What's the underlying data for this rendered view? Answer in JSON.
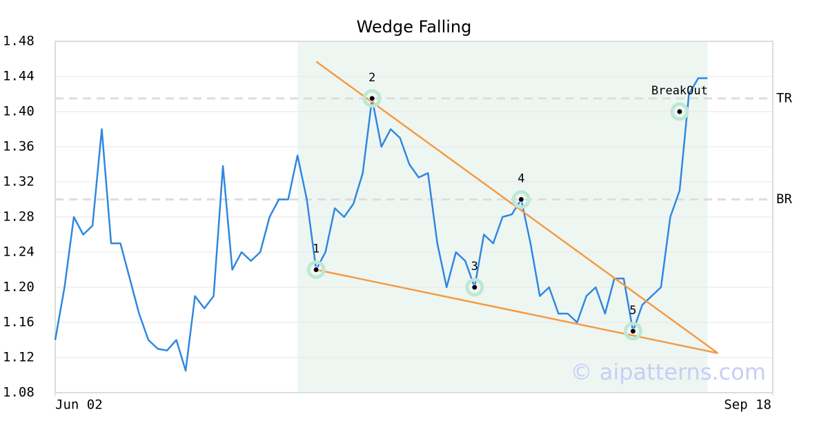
{
  "chart_data": {
    "type": "line",
    "title": "Wedge Falling",
    "x": [
      0,
      1,
      2,
      3,
      4,
      5,
      6,
      7,
      8,
      9,
      10,
      11,
      12,
      13,
      14,
      15,
      16,
      17,
      18,
      19,
      20,
      21,
      22,
      23,
      24,
      25,
      26,
      27,
      28,
      29,
      30,
      31,
      32,
      33,
      34,
      35,
      36,
      37,
      38,
      39,
      40,
      41,
      42,
      43,
      44,
      45,
      46,
      47,
      48,
      49,
      50,
      51,
      52,
      53,
      54,
      55,
      56,
      57,
      58,
      59,
      60,
      61,
      62,
      63,
      64,
      65,
      66,
      67,
      68,
      69,
      70
    ],
    "series": [
      {
        "color": "#2f87e0",
        "values": [
          1.14,
          1.2,
          1.28,
          1.26,
          1.27,
          1.38,
          1.25,
          1.25,
          1.21,
          1.17,
          1.14,
          1.13,
          1.128,
          1.14,
          1.105,
          1.19,
          1.176,
          1.19,
          1.338,
          1.22,
          1.24,
          1.23,
          1.24,
          1.28,
          1.3,
          1.3,
          1.35,
          1.3,
          1.22,
          1.24,
          1.29,
          1.28,
          1.295,
          1.33,
          1.415,
          1.36,
          1.38,
          1.37,
          1.34,
          1.325,
          1.33,
          1.25,
          1.2,
          1.24,
          1.23,
          1.2,
          1.26,
          1.25,
          1.28,
          1.283,
          1.3,
          1.25,
          1.19,
          1.2,
          1.17,
          1.17,
          1.16,
          1.19,
          1.2,
          1.17,
          1.21,
          1.21,
          1.15,
          1.18,
          1.19,
          1.2,
          1.28,
          1.31,
          1.42,
          1.438,
          1.438
        ]
      }
    ],
    "xlim": [
      0,
      77
    ],
    "xticks": [
      {
        "value": 0,
        "label": "Jun 02"
      },
      {
        "value": 77,
        "label": "Sep 18"
      }
    ],
    "ylim": [
      1.08,
      1.48
    ],
    "yticks": [
      1.08,
      1.12,
      1.16,
      {
        "value": 1.2,
        "label": "1.20"
      },
      1.24,
      1.28,
      1.32,
      1.36,
      {
        "value": 1.4,
        "label": "1.40"
      },
      1.44,
      1.48
    ],
    "grid": true,
    "pattern_region": {
      "x": [
        26,
        70
      ],
      "color": "#eef6f2"
    },
    "trendlines": [
      {
        "x": [
          28,
          71.1
        ],
        "y": [
          1.457,
          1.125
        ],
        "color": "#f59a42"
      },
      {
        "x": [
          28,
          71.1
        ],
        "y": [
          1.22,
          1.125
        ],
        "color": "#f59a42"
      }
    ],
    "levels": [
      {
        "label": "TR",
        "y": 1.415
      },
      {
        "label": "BR",
        "y": 1.3
      }
    ],
    "points": [
      {
        "label": "1",
        "x": 28,
        "y": 1.22
      },
      {
        "label": "2",
        "x": 34,
        "y": 1.415
      },
      {
        "label": "3",
        "x": 45,
        "y": 1.2
      },
      {
        "label": "4",
        "x": 50,
        "y": 1.3
      },
      {
        "label": "5",
        "x": 62,
        "y": 1.15
      },
      {
        "label": "BreakOut",
        "x": 67,
        "y": 1.4
      }
    ],
    "watermark": "© aipatterns.com"
  }
}
